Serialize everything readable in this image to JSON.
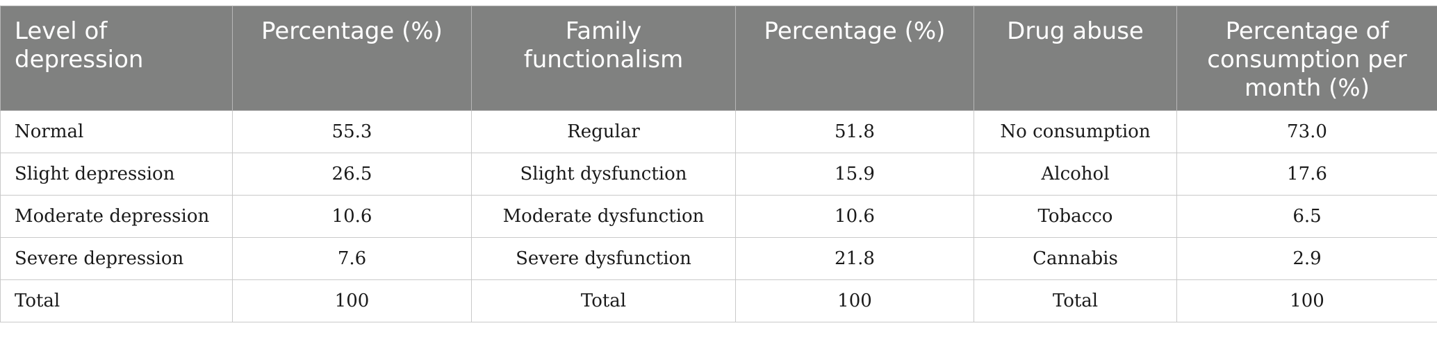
{
  "headers": [
    "Level of depression",
    "Percentage (%)",
    "Family functionalism",
    "Percentage (%)",
    "Drug abuse",
    "Percentage of consumption per month (%)"
  ],
  "rows": [
    [
      "Normal",
      "55.3",
      "Regular",
      "51.8",
      "No consumption",
      "73.0"
    ],
    [
      "Slight depression",
      "26.5",
      "Slight dysfunction",
      "15.9",
      "Alcohol",
      "17.6"
    ],
    [
      "Moderate depression",
      "10.6",
      "Moderate dysfunction",
      "10.6",
      "Tobacco",
      "6.5"
    ],
    [
      "Severe depression",
      "7.6",
      "Severe dysfunction",
      "21.8",
      "Cannabis",
      "2.9"
    ],
    [
      "Total",
      "100",
      "Total",
      "100",
      "Total",
      "100"
    ]
  ]
}
